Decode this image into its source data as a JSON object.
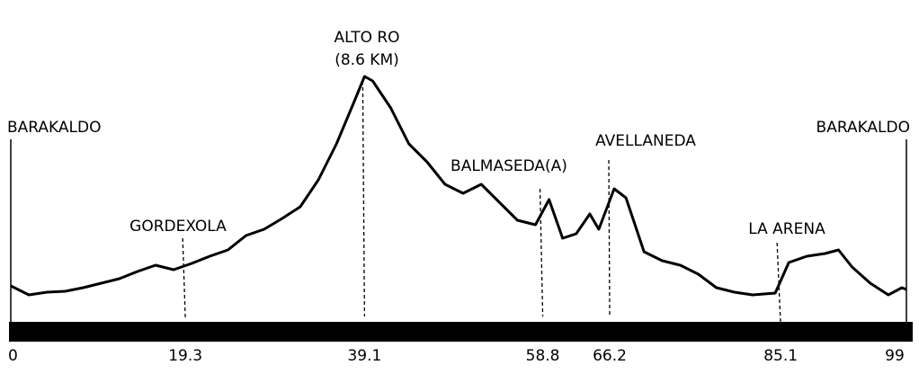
{
  "chart_data": {
    "type": "line",
    "x": [
      0,
      2,
      4,
      6,
      8,
      10,
      12,
      14,
      16,
      18,
      20,
      22,
      24,
      26,
      28,
      30,
      32,
      34,
      36,
      38,
      39.1,
      40,
      42,
      44,
      46,
      48,
      50,
      52,
      54,
      56,
      58,
      59.5,
      61,
      62.5,
      64,
      65,
      66.7,
      68,
      70,
      72,
      74,
      76,
      78,
      80,
      82,
      84.5,
      86,
      88,
      90,
      91.5,
      93,
      95,
      97,
      98.5,
      99
    ],
    "values": [
      40,
      30,
      33,
      34,
      38,
      43,
      48,
      56,
      63,
      58,
      65,
      73,
      80,
      96,
      103,
      115,
      128,
      158,
      198,
      246,
      273,
      268,
      238,
      198,
      178,
      153,
      143,
      153,
      133,
      113,
      108,
      136,
      93,
      98,
      120,
      103,
      148,
      138,
      78,
      68,
      63,
      53,
      38,
      33,
      30,
      32,
      66,
      73,
      76,
      80,
      61,
      43,
      30,
      38,
      36
    ],
    "color": "#000000",
    "xlim": [
      0,
      99
    ],
    "ylim": [
      0,
      300
    ],
    "xticks": [
      0,
      19.3,
      39.1,
      58.8,
      66.2,
      85.1,
      99
    ],
    "annotations": [
      {
        "text": [
          "BARAKALDO"
        ]
      },
      {
        "text": [
          "GORDEXOLA"
        ]
      },
      {
        "text": [
          "ALTO  RO",
          "(8.6 KM)"
        ]
      },
      {
        "text": [
          "BALMASEDA(A)"
        ]
      },
      {
        "text": [
          "AVELLANEDA"
        ]
      },
      {
        "text": [
          "LA ARENA"
        ]
      },
      {
        "text": [
          "BARAKALDO"
        ]
      }
    ]
  }
}
